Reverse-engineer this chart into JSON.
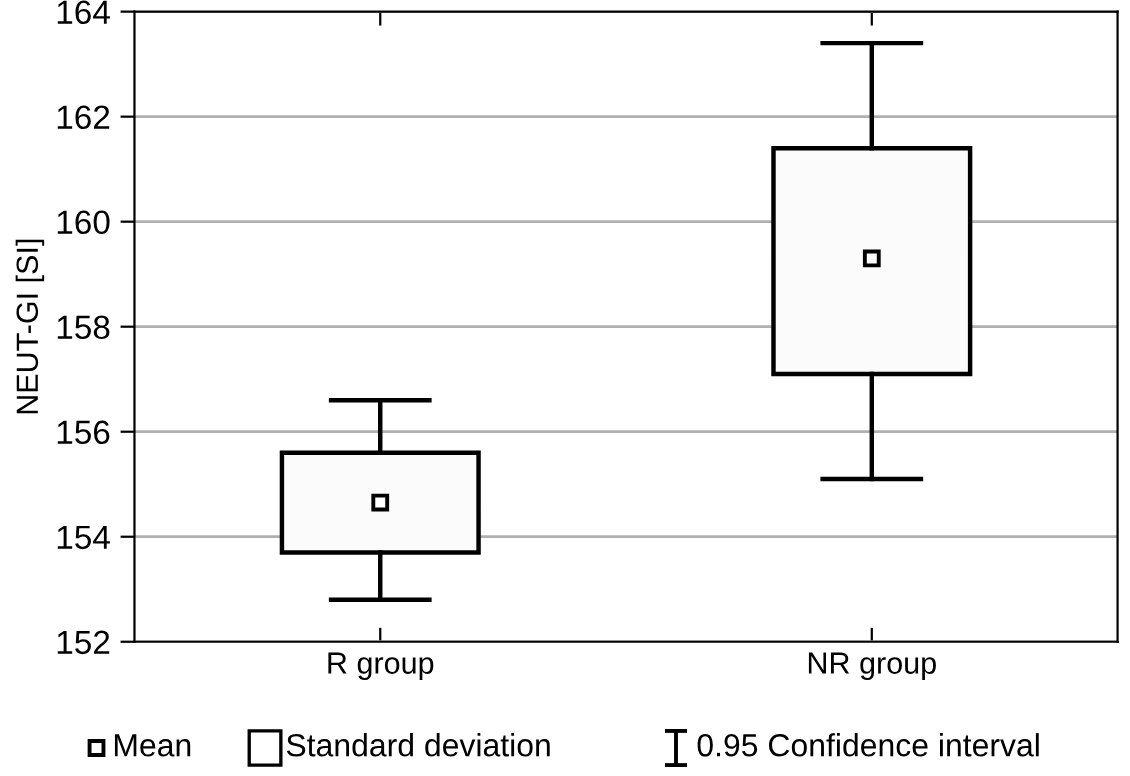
{
  "chart_data": {
    "type": "box",
    "ylabel": "NEUT-GI [SI]",
    "categories": [
      "R group",
      "NR group"
    ],
    "boxes": [
      {
        "low": 152.8,
        "q1": 153.7,
        "q3": 155.6,
        "high": 156.6,
        "mean": 154.65
      },
      {
        "low": 155.1,
        "q1": 157.1,
        "q3": 161.4,
        "high": 163.4,
        "mean": 159.3
      }
    ],
    "color": "#000000",
    "ylim": [
      152,
      164
    ],
    "yticks": [
      152,
      154,
      156,
      158,
      160,
      162,
      164
    ],
    "grid": "y",
    "marker": "square",
    "annotations": [
      "Mean",
      "Standard deviation",
      "0.95 Confidence interval"
    ]
  }
}
